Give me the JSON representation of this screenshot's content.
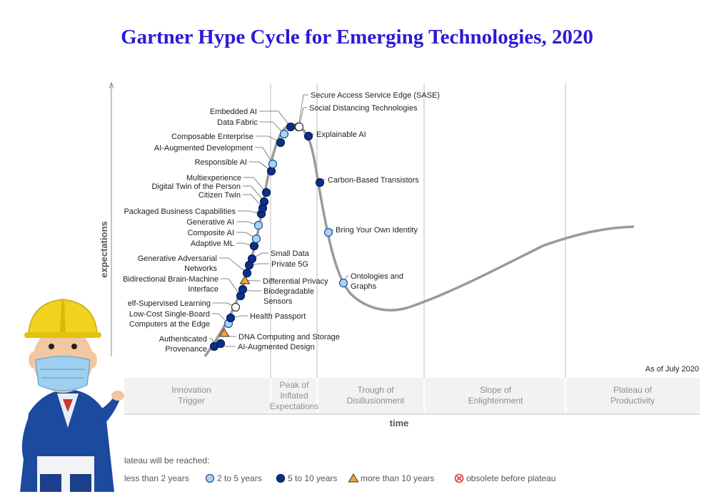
{
  "title": "Gartner Hype Cycle for Emerging Technologies, 2020",
  "colors": {
    "title": "#2a1bd6",
    "less_than_2": "#ffffff",
    "two_to_five": "#a8d3f2",
    "five_to_ten": "#0b2f8a",
    "more_than_10": "#f2a72e",
    "obsolete": "#d33c3c",
    "curve": "#9a9a9a"
  },
  "chart_data": {
    "type": "scatter",
    "title": "Gartner Hype Cycle for Emerging Technologies, 2020",
    "xlabel": "time",
    "ylabel": "expectations",
    "as_of": "As of July 2020",
    "phases": [
      {
        "label": [
          "Innovation",
          "Trigger"
        ]
      },
      {
        "label": [
          "Peak of",
          "Inflated",
          "Expectations"
        ]
      },
      {
        "label": [
          "Trough of",
          "Disillusionment"
        ]
      },
      {
        "label": [
          "Slope of",
          "Enlightenment"
        ]
      },
      {
        "label": [
          "Plateau of",
          "Productivity"
        ]
      }
    ],
    "legend_title": "lateau will be reached:",
    "legend": [
      {
        "key": "less_than_2",
        "label": "less than 2 years",
        "marker": "circle"
      },
      {
        "key": "two_to_five",
        "label": "2 to 5 years",
        "marker": "circle"
      },
      {
        "key": "five_to_ten",
        "label": "5 to 10 years",
        "marker": "circle"
      },
      {
        "key": "more_than_10",
        "label": "more than 10 years",
        "marker": "triangle"
      },
      {
        "key": "obsolete",
        "label": "obsolete before plateau",
        "marker": "crossed-circle"
      }
    ],
    "technologies": [
      {
        "name": [
          "Authenticated",
          "Provenance"
        ],
        "category": "five_to_ten"
      },
      {
        "name": [
          "AI-Augmented Design"
        ],
        "category": "five_to_ten"
      },
      {
        "name": [
          "DNA Computing and Storage"
        ],
        "category": "more_than_10"
      },
      {
        "name": [
          "Low-Cost Single-Board",
          "Computers at the Edge"
        ],
        "category": "two_to_five"
      },
      {
        "name": [
          "Health Passport"
        ],
        "category": "five_to_ten"
      },
      {
        "name": [
          "elf-Supervised Learning"
        ],
        "category": "less_than_2"
      },
      {
        "name": [
          "Bidirectional Brain-Machine",
          "Interface"
        ],
        "category": "five_to_ten"
      },
      {
        "name": [
          "Biodegradable",
          "Sensors"
        ],
        "category": "five_to_ten"
      },
      {
        "name": [
          "Differential Privacy"
        ],
        "category": "more_than_10"
      },
      {
        "name": [
          "Generative Adversarial",
          "Networks"
        ],
        "category": "five_to_ten"
      },
      {
        "name": [
          "Private 5G"
        ],
        "category": "five_to_ten"
      },
      {
        "name": [
          "Small Data"
        ],
        "category": "five_to_ten"
      },
      {
        "name": [
          "Adaptive ML"
        ],
        "category": "five_to_ten"
      },
      {
        "name": [
          "Composite AI"
        ],
        "category": "two_to_five"
      },
      {
        "name": [
          "Generative AI"
        ],
        "category": "two_to_five"
      },
      {
        "name": [
          "Packaged Business Capabilities"
        ],
        "category": "five_to_ten"
      },
      {
        "name": [
          "Citizen Twin"
        ],
        "category": "five_to_ten"
      },
      {
        "name": [
          "Digital Twin of the Person"
        ],
        "category": "five_to_ten"
      },
      {
        "name": [
          "Multiexperience"
        ],
        "category": "five_to_ten"
      },
      {
        "name": [
          "Responsible AI"
        ],
        "category": "five_to_ten"
      },
      {
        "name": [
          "AI-Augmented Development"
        ],
        "category": "two_to_five"
      },
      {
        "name": [
          "Composable Enterprise"
        ],
        "category": "five_to_ten"
      },
      {
        "name": [
          "Data Fabric"
        ],
        "category": "two_to_five"
      },
      {
        "name": [
          "Embedded AI"
        ],
        "category": "five_to_ten"
      },
      {
        "name": [
          "Secure Access Service Edge (SASE)"
        ],
        "category": "less_than_2"
      },
      {
        "name": [
          "Social Distancing Technologies"
        ],
        "category": "less_than_2"
      },
      {
        "name": [
          "Explainable AI"
        ],
        "category": "five_to_ten"
      },
      {
        "name": [
          "Carbon-Based Transistors"
        ],
        "category": "five_to_ten"
      },
      {
        "name": [
          "Bring Your Own Identity"
        ],
        "category": "two_to_five"
      },
      {
        "name": [
          "Ontologies and",
          "Graphs"
        ],
        "category": "two_to_five"
      }
    ]
  }
}
